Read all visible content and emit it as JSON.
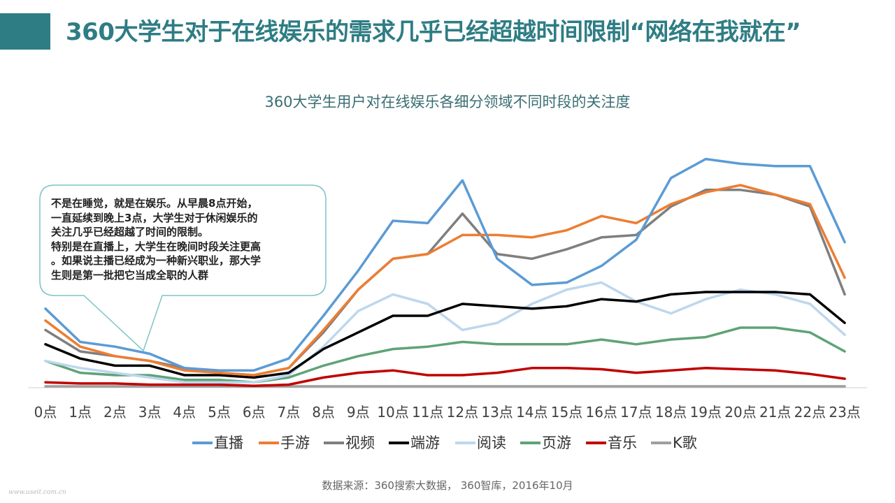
{
  "page": {
    "title": "360大学生对于在线娱乐的需求几乎已经超越时间限制“网络在我就在”",
    "source": "数据来源：360搜索大数据， 360智库，2016年10月",
    "watermark": "www.useit.com.cn"
  },
  "callout": {
    "lines": [
      "不是在睡觉，就是在娱乐。从早晨8点开始，",
      "一直延续到晚上3点，大学生对于休闲娱乐的",
      "关注几乎已经超越了时间的限制。",
      "特别是在直播上，大学生在晚间时段关注更高",
      "。如果说主播已经成为一种新兴职业，那大学",
      "生则是第一批把它当成全职的人群"
    ]
  },
  "colors": {
    "header_bar": "#2e7d84",
    "title": "#2e7d84",
    "callout_border": "#7fc3c8"
  },
  "chart_data": {
    "type": "line",
    "title": "360大学生用户对在线娱乐各细分领域不同时段的关注度",
    "categories": [
      "0点",
      "1点",
      "2点",
      "3点",
      "4点",
      "5点",
      "6点",
      "7点",
      "8点",
      "9点",
      "10点",
      "11点",
      "12点",
      "13点",
      "14点",
      "15点",
      "16点",
      "17点",
      "18点",
      "19点",
      "20点",
      "21点",
      "22点",
      "23点"
    ],
    "ylim": [
      0,
      100
    ],
    "grid": false,
    "legend_position": "bottom",
    "series": [
      {
        "name": "直播",
        "color": "#5b9bd5",
        "values": [
          33,
          19,
          17,
          14,
          8,
          7,
          7,
          12,
          30,
          49,
          70,
          69,
          87,
          54,
          43,
          44,
          51,
          62,
          88,
          96,
          94,
          93,
          93,
          61
        ]
      },
      {
        "name": "手游",
        "color": "#ed7d31",
        "values": [
          28,
          17,
          13,
          11,
          7,
          6,
          5,
          8,
          24,
          41,
          54,
          56,
          64,
          64,
          63,
          66,
          72,
          69,
          77,
          82,
          85,
          81,
          77,
          46
        ]
      },
      {
        "name": "视频",
        "color": "#7f7f7f",
        "values": [
          24,
          15,
          13,
          11,
          8,
          6,
          5,
          8,
          23,
          41,
          54,
          56,
          73,
          56,
          54,
          58,
          63,
          64,
          76,
          83,
          83,
          81,
          76,
          39
        ]
      },
      {
        "name": "端游",
        "color": "#000000",
        "values": [
          18,
          12,
          9,
          9,
          5,
          5,
          4,
          6,
          16,
          23,
          30,
          30,
          35,
          34,
          33,
          34,
          37,
          36,
          39,
          40,
          40,
          40,
          39,
          27
        ]
      },
      {
        "name": "阅读",
        "color": "#bdd7ee",
        "values": [
          11,
          8,
          6,
          4,
          2,
          2,
          2,
          5,
          17,
          32,
          39,
          35,
          24,
          27,
          35,
          41,
          44,
          36,
          31,
          37,
          41,
          39,
          35,
          22
        ]
      },
      {
        "name": "页游",
        "color": "#5fa376",
        "values": [
          11,
          6,
          5,
          5,
          3,
          3,
          2,
          4,
          9,
          13,
          16,
          17,
          19,
          18,
          18,
          18,
          20,
          18,
          20,
          21,
          25,
          25,
          23,
          15
        ]
      },
      {
        "name": "音乐",
        "color": "#c00000",
        "values": [
          2,
          1.5,
          1.5,
          1,
          1,
          1,
          0.5,
          1,
          4,
          6,
          7,
          5,
          5,
          6,
          8,
          8,
          7.5,
          6,
          7,
          8,
          7.5,
          7,
          5.5,
          3.5
        ]
      },
      {
        "name": "K歌",
        "color": "#9e9e9e",
        "values": [
          0.3,
          0.3,
          0.3,
          0.3,
          0.3,
          0.3,
          0.3,
          0.3,
          0.3,
          0.3,
          0.3,
          0.3,
          0.3,
          0.3,
          0.3,
          0.3,
          0.3,
          0.3,
          0.3,
          0.3,
          0.3,
          0.3,
          0.3,
          0.3
        ]
      }
    ]
  }
}
